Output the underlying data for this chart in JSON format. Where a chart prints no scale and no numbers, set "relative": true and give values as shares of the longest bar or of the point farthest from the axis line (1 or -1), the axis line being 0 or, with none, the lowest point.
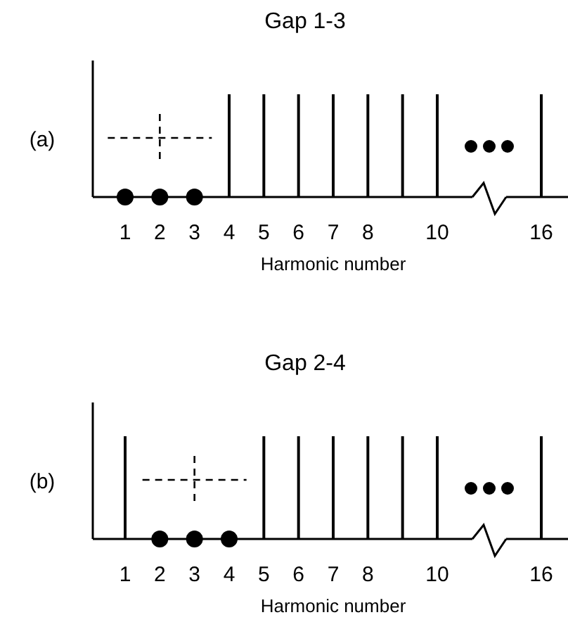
{
  "chart_data": [
    {
      "type": "bar",
      "title": "Gap 1-3",
      "xlabel": "Harmonic number",
      "annotations": [
        "(a)"
      ],
      "categories": [
        "1",
        "2",
        "3",
        "4",
        "5",
        "6",
        "7",
        "8",
        null,
        "10",
        null,
        null,
        "16"
      ],
      "relative": true,
      "marker": "circle",
      "series": [
        {
          "type": "bar",
          "color": "#000000",
          "values": [
            null,
            null,
            null,
            1,
            1,
            1,
            1,
            1,
            1,
            1,
            null,
            null,
            1
          ]
        },
        {
          "type": "scatter",
          "color": "#000000",
          "x": [
            "1",
            "2",
            "3"
          ],
          "values": [
            0,
            0,
            0
          ]
        }
      ]
    },
    {
      "type": "bar",
      "title": "Gap 2-4",
      "xlabel": "Harmonic number",
      "annotations": [
        "(b)"
      ],
      "categories": [
        "1",
        "2",
        "3",
        "4",
        "5",
        "6",
        "7",
        "8",
        null,
        "10",
        null,
        null,
        "16"
      ],
      "relative": true,
      "marker": "circle",
      "series": [
        {
          "type": "bar",
          "color": "#000000",
          "values": [
            1,
            null,
            null,
            null,
            1,
            1,
            1,
            1,
            1,
            1,
            null,
            null,
            1
          ]
        },
        {
          "type": "scatter",
          "color": "#000000",
          "x": [
            "2",
            "3",
            "4"
          ],
          "values": [
            0,
            0,
            0
          ]
        }
      ]
    }
  ]
}
